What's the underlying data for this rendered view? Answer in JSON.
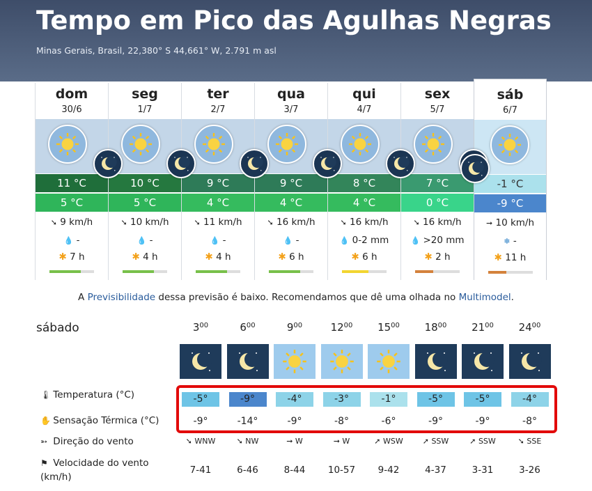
{
  "header": {
    "title": "Tempo em Pico das Agulhas Negras",
    "subtitle": "Minas Gerais, Brasil, 22,380° S 44,661° W, 2.791 m asl"
  },
  "days": [
    {
      "name": "dom",
      "date": "30/6",
      "tmax": "11 °C",
      "tmin": "5 °C",
      "wind": "9 km/h",
      "precip": "-",
      "sun": "7 h",
      "tmax_color": "#1f6e3a",
      "tmin_color": "#2fb55a",
      "predictability": 0.7,
      "pred_color": "#78c04a",
      "wind_arrow": "➘",
      "precip_icon": "💧"
    },
    {
      "name": "seg",
      "date": "1/7",
      "tmax": "10 °C",
      "tmin": "5 °C",
      "wind": "10 km/h",
      "precip": "-",
      "sun": "4 h",
      "tmax_color": "#25783f",
      "tmin_color": "#2fb55a",
      "predictability": 0.7,
      "pred_color": "#78c04a",
      "wind_arrow": "➘",
      "precip_icon": "💧"
    },
    {
      "name": "ter",
      "date": "2/7",
      "tmax": "9 °C",
      "tmin": "4 °C",
      "wind": "11 km/h",
      "precip": "-",
      "sun": "4 h",
      "tmax_color": "#2e7b58",
      "tmin_color": "#35bb5e",
      "predictability": 0.7,
      "pred_color": "#78c04a",
      "wind_arrow": "➘",
      "precip_icon": "💧"
    },
    {
      "name": "qua",
      "date": "3/7",
      "tmax": "9 °C",
      "tmin": "4 °C",
      "wind": "16 km/h",
      "precip": "-",
      "sun": "6 h",
      "tmax_color": "#2e7b58",
      "tmin_color": "#35bb5e",
      "predictability": 0.7,
      "pred_color": "#78c04a",
      "wind_arrow": "➘",
      "precip_icon": "💧"
    },
    {
      "name": "qui",
      "date": "4/7",
      "tmax": "8 °C",
      "tmin": "4 °C",
      "wind": "16 km/h",
      "precip": "0-2 mm",
      "sun": "6 h",
      "tmax_color": "#33855a",
      "tmin_color": "#35bb5e",
      "predictability": 0.6,
      "pred_color": "#f2d531",
      "wind_arrow": "➘",
      "precip_icon": "💧"
    },
    {
      "name": "sex",
      "date": "5/7",
      "tmax": "7 °C",
      "tmin": "0 °C",
      "wind": "16 km/h",
      "precip": ">20 mm",
      "sun": "2 h",
      "tmax_color": "#3a9a70",
      "tmin_color": "#39d48a",
      "predictability": 0.4,
      "pred_color": "#d4823c",
      "wind_arrow": "➘",
      "precip_icon": "💧"
    },
    {
      "name": "sáb",
      "date": "6/7",
      "tmax": "-1 °C",
      "tmin": "-9 °C",
      "wind": "10 km/h",
      "precip": "-",
      "sun": "11 h",
      "tmax_color": "#abe1ec",
      "tmin_color": "#4b86cc",
      "predictability": 0.4,
      "pred_color": "#d4823c",
      "wind_arrow": "➞",
      "precip_icon": "❄",
      "selected": true
    }
  ],
  "note": {
    "prefix": "A ",
    "link1": "Previsibilidade",
    "middle": " dessa previsão é baixo. Recomendamos que dê uma olhada no ",
    "link2": "Multimodel",
    "suffix": "."
  },
  "hourly": {
    "day_label": "sábado",
    "hours": [
      {
        "h": "3",
        "sup": "00",
        "temp": "-5°",
        "feels": "-9°",
        "dir": "WNW",
        "arrow": "➘",
        "speed": "7-41",
        "temp_color": "#6ec4e6",
        "icon": "moon-cloud"
      },
      {
        "h": "6",
        "sup": "00",
        "temp": "-9°",
        "feels": "-14°",
        "dir": "NW",
        "arrow": "➘",
        "speed": "6-46",
        "temp_color": "#4b86cc",
        "icon": "moon"
      },
      {
        "h": "9",
        "sup": "00",
        "temp": "-4°",
        "feels": "-9°",
        "dir": "W",
        "arrow": "➞",
        "speed": "8-44",
        "temp_color": "#8dd3e8",
        "icon": "sun"
      },
      {
        "h": "12",
        "sup": "00",
        "temp": "-3°",
        "feels": "-8°",
        "dir": "W",
        "arrow": "➞",
        "speed": "10-57",
        "temp_color": "#8dd3e8",
        "icon": "sun"
      },
      {
        "h": "15",
        "sup": "00",
        "temp": "-1°",
        "feels": "-6°",
        "dir": "WSW",
        "arrow": "➚",
        "speed": "9-42",
        "temp_color": "#abe1ec",
        "icon": "sun"
      },
      {
        "h": "18",
        "sup": "00",
        "temp": "-5°",
        "feels": "-9°",
        "dir": "SSW",
        "arrow": "➚",
        "speed": "4-37",
        "temp_color": "#6ec4e6",
        "icon": "moon"
      },
      {
        "h": "21",
        "sup": "00",
        "temp": "-5°",
        "feels": "-9°",
        "dir": "SSW",
        "arrow": "➚",
        "speed": "3-31",
        "temp_color": "#6ec4e6",
        "icon": "moon"
      },
      {
        "h": "24",
        "sup": "00",
        "temp": "-4°",
        "feels": "-8°",
        "dir": "SSE",
        "arrow": "➘",
        "speed": "3-26",
        "temp_color": "#8dd3e8",
        "icon": "moon"
      }
    ],
    "rows": {
      "temperature": "Temperatura (°C)",
      "feels": "Sensação Térmica (°C)",
      "direction": "Direção do vento",
      "speed": "Velocidade do vento (km/h)"
    }
  },
  "colors": {
    "accent_link": "#2a5c9c",
    "highlight_box": "#e20a0a"
  }
}
